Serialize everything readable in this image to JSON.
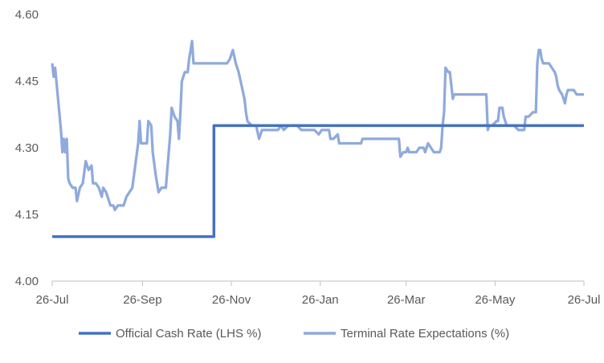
{
  "chart_data": {
    "type": "line",
    "title": "",
    "xlabel": "",
    "ylabel": "",
    "ylim": [
      4.0,
      4.6
    ],
    "yticks": [
      "4.00",
      "4.15",
      "4.30",
      "4.45",
      "4.60"
    ],
    "xticks": [
      {
        "label": "26-Jul",
        "day": 0
      },
      {
        "label": "26-Sep",
        "day": 62
      },
      {
        "label": "26-Nov",
        "day": 123
      },
      {
        "label": "26-Jan",
        "day": 184
      },
      {
        "label": "26-Mar",
        "day": 243
      },
      {
        "label": "26-May",
        "day": 304
      },
      {
        "label": "26-Jul",
        "day": 365
      }
    ],
    "grid": false,
    "legend_position": "bottom",
    "series": [
      {
        "name": "Official Cash Rate (LHS %)",
        "color": "#4472C4",
        "points": [
          [
            0,
            4.1
          ],
          [
            111,
            4.1
          ],
          [
            111,
            4.35
          ],
          [
            365,
            4.35
          ]
        ]
      },
      {
        "name": "Terminal Rate Expectations (%)",
        "color": "#8FAADC",
        "points": [
          [
            0,
            4.49
          ],
          [
            1,
            4.46
          ],
          [
            2,
            4.48
          ],
          [
            4,
            4.41
          ],
          [
            6,
            4.34
          ],
          [
            7,
            4.29
          ],
          [
            8,
            4.32
          ],
          [
            9,
            4.29
          ],
          [
            10,
            4.32
          ],
          [
            11,
            4.23
          ],
          [
            12,
            4.22
          ],
          [
            14,
            4.21
          ],
          [
            16,
            4.21
          ],
          [
            17,
            4.18
          ],
          [
            19,
            4.21
          ],
          [
            21,
            4.22
          ],
          [
            23,
            4.27
          ],
          [
            25,
            4.25
          ],
          [
            27,
            4.26
          ],
          [
            28,
            4.22
          ],
          [
            30,
            4.22
          ],
          [
            32,
            4.21
          ],
          [
            34,
            4.19
          ],
          [
            35,
            4.21
          ],
          [
            37,
            4.2
          ],
          [
            39,
            4.18
          ],
          [
            40,
            4.17
          ],
          [
            42,
            4.17
          ],
          [
            43,
            4.16
          ],
          [
            45,
            4.17
          ],
          [
            47,
            4.17
          ],
          [
            49,
            4.17
          ],
          [
            51,
            4.19
          ],
          [
            53,
            4.2
          ],
          [
            55,
            4.21
          ],
          [
            57,
            4.26
          ],
          [
            59,
            4.31
          ],
          [
            60,
            4.36
          ],
          [
            61,
            4.31
          ],
          [
            63,
            4.31
          ],
          [
            65,
            4.31
          ],
          [
            66,
            4.36
          ],
          [
            68,
            4.35
          ],
          [
            69,
            4.29
          ],
          [
            71,
            4.24
          ],
          [
            73,
            4.2
          ],
          [
            75,
            4.21
          ],
          [
            78,
            4.21
          ],
          [
            80,
            4.29
          ],
          [
            81,
            4.33
          ],
          [
            82,
            4.39
          ],
          [
            84,
            4.37
          ],
          [
            86,
            4.36
          ],
          [
            87,
            4.32
          ],
          [
            88,
            4.38
          ],
          [
            89,
            4.45
          ],
          [
            91,
            4.47
          ],
          [
            93,
            4.47
          ],
          [
            94,
            4.5
          ],
          [
            96,
            4.54
          ],
          [
            97,
            4.49
          ],
          [
            100,
            4.49
          ],
          [
            105,
            4.49
          ],
          [
            110,
            4.49
          ],
          [
            115,
            4.49
          ],
          [
            120,
            4.49
          ],
          [
            122,
            4.5
          ],
          [
            124,
            4.52
          ],
          [
            126,
            4.49
          ],
          [
            128,
            4.47
          ],
          [
            130,
            4.44
          ],
          [
            132,
            4.41
          ],
          [
            133,
            4.38
          ],
          [
            134,
            4.36
          ],
          [
            137,
            4.35
          ],
          [
            140,
            4.35
          ],
          [
            142,
            4.32
          ],
          [
            144,
            4.34
          ],
          [
            146,
            4.34
          ],
          [
            150,
            4.34
          ],
          [
            155,
            4.34
          ],
          [
            157,
            4.35
          ],
          [
            159,
            4.34
          ],
          [
            162,
            4.35
          ],
          [
            165,
            4.35
          ],
          [
            168,
            4.35
          ],
          [
            171,
            4.34
          ],
          [
            175,
            4.34
          ],
          [
            180,
            4.34
          ],
          [
            183,
            4.33
          ],
          [
            185,
            4.34
          ],
          [
            190,
            4.34
          ],
          [
            191,
            4.32
          ],
          [
            193,
            4.32
          ],
          [
            196,
            4.33
          ],
          [
            197,
            4.31
          ],
          [
            200,
            4.31
          ],
          [
            203,
            4.31
          ],
          [
            206,
            4.31
          ],
          [
            209,
            4.31
          ],
          [
            212,
            4.31
          ],
          [
            213,
            4.32
          ],
          [
            215,
            4.32
          ],
          [
            220,
            4.32
          ],
          [
            225,
            4.32
          ],
          [
            230,
            4.32
          ],
          [
            236,
            4.32
          ],
          [
            238,
            4.32
          ],
          [
            239,
            4.28
          ],
          [
            241,
            4.29
          ],
          [
            243,
            4.29
          ],
          [
            244,
            4.3
          ],
          [
            245,
            4.29
          ],
          [
            246,
            4.29
          ],
          [
            248,
            4.29
          ],
          [
            250,
            4.29
          ],
          [
            252,
            4.3
          ],
          [
            255,
            4.3
          ],
          [
            256,
            4.29
          ],
          [
            258,
            4.31
          ],
          [
            260,
            4.3
          ],
          [
            262,
            4.29
          ],
          [
            264,
            4.29
          ],
          [
            266,
            4.29
          ],
          [
            267,
            4.3
          ],
          [
            268,
            4.35
          ],
          [
            269,
            4.38
          ],
          [
            270,
            4.48
          ],
          [
            272,
            4.47
          ],
          [
            273,
            4.47
          ],
          [
            274,
            4.44
          ],
          [
            275,
            4.41
          ],
          [
            276,
            4.42
          ],
          [
            280,
            4.42
          ],
          [
            285,
            4.42
          ],
          [
            290,
            4.42
          ],
          [
            295,
            4.42
          ],
          [
            298,
            4.42
          ],
          [
            299,
            4.34
          ],
          [
            300,
            4.35
          ],
          [
            302,
            4.35
          ],
          [
            305,
            4.36
          ],
          [
            306,
            4.36
          ],
          [
            307,
            4.39
          ],
          [
            309,
            4.39
          ],
          [
            310,
            4.37
          ],
          [
            312,
            4.35
          ],
          [
            313,
            4.35
          ],
          [
            315,
            4.35
          ],
          [
            317,
            4.35
          ],
          [
            320,
            4.34
          ],
          [
            322,
            4.34
          ],
          [
            324,
            4.34
          ],
          [
            325,
            4.37
          ],
          [
            327,
            4.37
          ],
          [
            330,
            4.38
          ],
          [
            332,
            4.38
          ],
          [
            333,
            4.49
          ],
          [
            334,
            4.52
          ],
          [
            335,
            4.52
          ],
          [
            336,
            4.5
          ],
          [
            337,
            4.49
          ],
          [
            338,
            4.49
          ],
          [
            340,
            4.49
          ],
          [
            341,
            4.49
          ],
          [
            343,
            4.48
          ],
          [
            345,
            4.47
          ],
          [
            346,
            4.46
          ],
          [
            347,
            4.44
          ],
          [
            348,
            4.43
          ],
          [
            350,
            4.42
          ],
          [
            351,
            4.41
          ],
          [
            352,
            4.4
          ],
          [
            353,
            4.42
          ],
          [
            354,
            4.43
          ],
          [
            356,
            4.43
          ],
          [
            358,
            4.43
          ],
          [
            360,
            4.42
          ],
          [
            363,
            4.42
          ],
          [
            365,
            4.42
          ]
        ]
      }
    ]
  }
}
